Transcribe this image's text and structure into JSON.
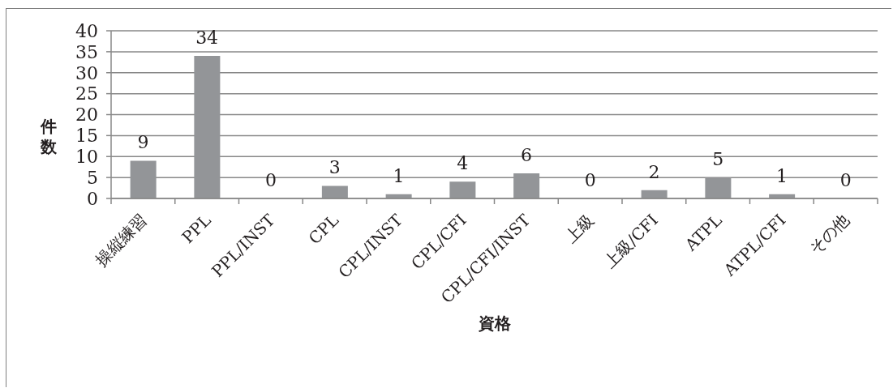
{
  "chart_data": {
    "type": "bar",
    "xlabel": "資格",
    "ylabel": "件数",
    "categories": [
      "操縦練習",
      "PPL",
      "PPL/INST",
      "CPL",
      "CPL/INST",
      "CPL/CFI",
      "CPL/CFI/INST",
      "上級",
      "上級/CFI",
      "ATPL",
      "ATPL/CFI",
      "その他"
    ],
    "values": [
      9,
      34,
      0,
      3,
      1,
      4,
      6,
      0,
      2,
      5,
      1,
      0
    ],
    "color": "#939598",
    "ylim": [
      0,
      40
    ],
    "yticks": [
      0,
      5,
      10,
      15,
      20,
      25,
      30,
      35,
      40
    ],
    "grid": "y",
    "data_labels": true
  }
}
